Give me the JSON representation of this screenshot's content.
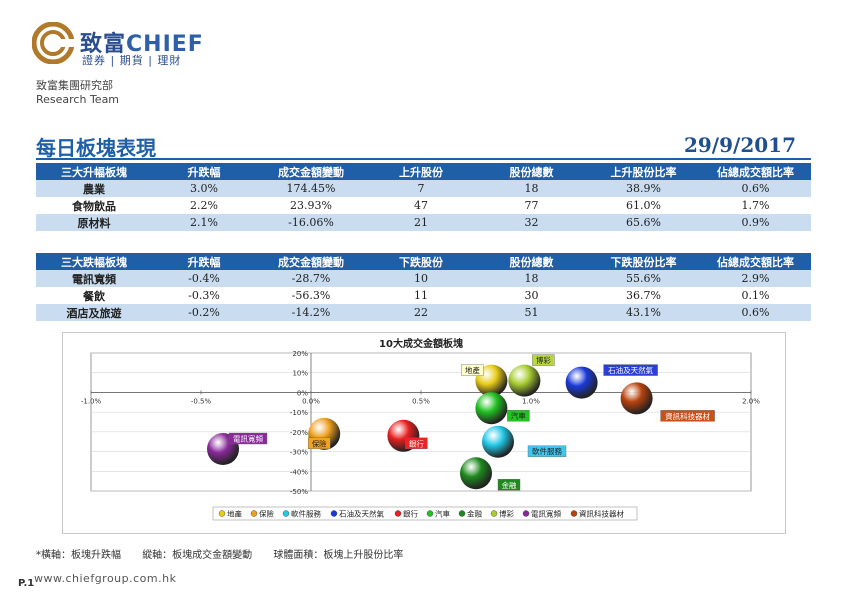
{
  "brand": {
    "name_cn": "致富",
    "name_en": "CHIEF",
    "tagline": "證券 | 期貨 | 理財",
    "brand_color": "#2a4d8f",
    "logo_color": "#b07a2a"
  },
  "department": {
    "name_cn": "致富集團研究部",
    "name_en": "Research Team"
  },
  "report": {
    "title": "每日板塊表現",
    "date": "29/9/2017"
  },
  "rise_table": {
    "headers": [
      "三大升幅板塊",
      "升跌幅",
      "成交金額變動",
      "上升股份",
      "股份總數",
      "上升股份比率",
      "佔總成交額比率"
    ],
    "rows": [
      [
        "農業",
        "3.0%",
        "174.45%",
        "7",
        "18",
        "38.9%",
        "0.6%"
      ],
      [
        "食物飲品",
        "2.2%",
        "23.93%",
        "47",
        "77",
        "61.0%",
        "1.7%"
      ],
      [
        "原材料",
        "2.1%",
        "-16.06%",
        "21",
        "32",
        "65.6%",
        "0.9%"
      ]
    ]
  },
  "fall_table": {
    "headers": [
      "三大跌幅板塊",
      "升跌幅",
      "成交金額變動",
      "下跌股份",
      "股份總數",
      "下跌股份比率",
      "佔總成交額比率"
    ],
    "rows": [
      [
        "電訊寬頻",
        "-0.4%",
        "-28.7%",
        "10",
        "18",
        "55.6%",
        "2.9%"
      ],
      [
        "餐飲",
        "-0.3%",
        "-56.3%",
        "11",
        "30",
        "36.7%",
        "0.1%"
      ],
      [
        "酒店及旅遊",
        "-0.2%",
        "-14.2%",
        "22",
        "51",
        "43.1%",
        "0.6%"
      ]
    ]
  },
  "chart_data": {
    "type": "scatter",
    "title": "10大成交金額板塊",
    "x_ticks": [
      "-1.0%",
      "-0.5%",
      "0.0%",
      "0.5%",
      "1.0%",
      "1.5%",
      "2.0%"
    ],
    "x_tick_values": [
      -1.0,
      -0.5,
      0.0,
      0.5,
      1.0,
      1.5,
      2.0
    ],
    "y_ticks": [
      "20%",
      "10%",
      "0%",
      "-10%",
      "-20%",
      "-30%",
      "-40%",
      "-50%"
    ],
    "y_tick_values": [
      20,
      10,
      0,
      -10,
      -20,
      -30,
      -40,
      -50
    ],
    "xlim": [
      -1.0,
      2.0
    ],
    "ylim": [
      -50,
      20
    ],
    "grid": true,
    "legend_position": "bottom",
    "series": [
      {
        "name": "地產",
        "x": 0.82,
        "y": 6,
        "color": "#e8cc1a",
        "label_bg": "#ffffcc",
        "label_color": "#222"
      },
      {
        "name": "保險",
        "x": 0.06,
        "y": -21,
        "color": "#f0a020",
        "label_bg": "#f6a21e",
        "label_color": "#222"
      },
      {
        "name": "軟件服務",
        "x": 0.85,
        "y": -25,
        "color": "#22c8e6",
        "label_bg": "#3fc6ee",
        "label_color": "#222"
      },
      {
        "name": "石油及天然氣",
        "x": 1.23,
        "y": 5,
        "color": "#1a3ad8",
        "label_bg": "#2a3fd4",
        "label_color": "#ffffff"
      },
      {
        "name": "銀行",
        "x": 0.42,
        "y": -22,
        "color": "#e82020",
        "label_bg": "#ee2222",
        "label_color": "#ffffff"
      },
      {
        "name": "汽車",
        "x": 0.82,
        "y": -8,
        "color": "#22c222",
        "label_bg": "#22c222",
        "label_color": "#222"
      },
      {
        "name": "金融",
        "x": 0.75,
        "y": -41,
        "color": "#1e8a1e",
        "label_bg": "#1e8a1e",
        "label_color": "#ffffff"
      },
      {
        "name": "博彩",
        "x": 0.97,
        "y": 6,
        "color": "#a8cc32",
        "label_bg": "#b6d83c",
        "label_color": "#222"
      },
      {
        "name": "電訊寬頻",
        "x": -0.4,
        "y": -28.7,
        "color": "#8a2a9a",
        "label_bg": "#8a2a9a",
        "label_color": "#ffffff"
      },
      {
        "name": "資訊科技器材",
        "x": 1.48,
        "y": -3,
        "color": "#b8420e",
        "label_bg": "#c8501c",
        "label_color": "#ffffff"
      }
    ]
  },
  "footnote": {
    "x_axis": "*橫軸：板塊升跌幅",
    "y_axis": "縱軸：板塊成交金額變動",
    "bubble": "球體面積：板塊上升股份比率"
  },
  "footer": {
    "page": "P.1",
    "website": "www.chiefgroup.com.hk"
  }
}
